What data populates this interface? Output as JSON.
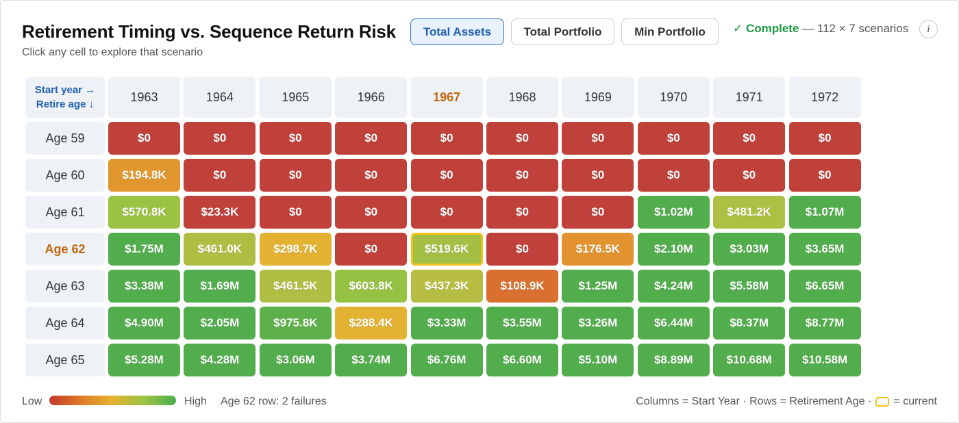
{
  "header": {
    "title": "Retirement Timing vs. Sequence Return Risk",
    "subtitle": "Click any cell to explore that scenario"
  },
  "tabs": [
    {
      "label": "Total Assets",
      "active": true
    },
    {
      "label": "Total Portfolio",
      "active": false
    },
    {
      "label": "Min Portfolio",
      "active": false
    }
  ],
  "status": {
    "state": "✓ Complete",
    "detail": "— 112 × 7 scenarios",
    "info_label": "i"
  },
  "grid": {
    "corner_line1": "Start year →",
    "corner_line2": "Retire age ↓",
    "columns": [
      "1963",
      "1964",
      "1965",
      "1966",
      "1967",
      "1968",
      "1969",
      "1970",
      "1971",
      "1972"
    ],
    "current_column": "1967",
    "current_row": "Age 62",
    "rows": [
      {
        "label": "Age 59",
        "cells": [
          {
            "v": "$0",
            "c": "#c0403a"
          },
          {
            "v": "$0",
            "c": "#c0403a"
          },
          {
            "v": "$0",
            "c": "#c0403a"
          },
          {
            "v": "$0",
            "c": "#c0403a"
          },
          {
            "v": "$0",
            "c": "#c0403a"
          },
          {
            "v": "$0",
            "c": "#c0403a"
          },
          {
            "v": "$0",
            "c": "#c0403a"
          },
          {
            "v": "$0",
            "c": "#c0403a"
          },
          {
            "v": "$0",
            "c": "#c0403a"
          },
          {
            "v": "$0",
            "c": "#c0403a"
          }
        ]
      },
      {
        "label": "Age 60",
        "cells": [
          {
            "v": "$194.8K",
            "c": "#e2972e"
          },
          {
            "v": "$0",
            "c": "#c0403a"
          },
          {
            "v": "$0",
            "c": "#c0403a"
          },
          {
            "v": "$0",
            "c": "#c0403a"
          },
          {
            "v": "$0",
            "c": "#c0403a"
          },
          {
            "v": "$0",
            "c": "#c0403a"
          },
          {
            "v": "$0",
            "c": "#c0403a"
          },
          {
            "v": "$0",
            "c": "#c0403a"
          },
          {
            "v": "$0",
            "c": "#c0403a"
          },
          {
            "v": "$0",
            "c": "#c0403a"
          }
        ]
      },
      {
        "label": "Age 61",
        "cells": [
          {
            "v": "$570.8K",
            "c": "#9bc243"
          },
          {
            "v": "$23.3K",
            "c": "#c0403a"
          },
          {
            "v": "$0",
            "c": "#c0403a"
          },
          {
            "v": "$0",
            "c": "#c0403a"
          },
          {
            "v": "$0",
            "c": "#c0403a"
          },
          {
            "v": "$0",
            "c": "#c0403a"
          },
          {
            "v": "$0",
            "c": "#c0403a"
          },
          {
            "v": "$1.02M",
            "c": "#52ad4d"
          },
          {
            "v": "$481.2K",
            "c": "#adc043"
          },
          {
            "v": "$1.07M",
            "c": "#52ad4d"
          }
        ]
      },
      {
        "label": "Age 62",
        "cells": [
          {
            "v": "$1.75M",
            "c": "#52ad4d"
          },
          {
            "v": "$461.0K",
            "c": "#afbe43"
          },
          {
            "v": "$298.7K",
            "c": "#e3b232"
          },
          {
            "v": "$0",
            "c": "#c0403a"
          },
          {
            "v": "$519.6K",
            "c": "#a3c045",
            "current": true
          },
          {
            "v": "$0",
            "c": "#c0403a"
          },
          {
            "v": "$176.5K",
            "c": "#e29330"
          },
          {
            "v": "$2.10M",
            "c": "#52ad4d"
          },
          {
            "v": "$3.03M",
            "c": "#52ad4d"
          },
          {
            "v": "$3.65M",
            "c": "#52ad4d"
          }
        ]
      },
      {
        "label": "Age 63",
        "cells": [
          {
            "v": "$3.38M",
            "c": "#52ad4d"
          },
          {
            "v": "$1.69M",
            "c": "#52ad4d"
          },
          {
            "v": "$461.5K",
            "c": "#afbe43"
          },
          {
            "v": "$603.8K",
            "c": "#96c244"
          },
          {
            "v": "$437.3K",
            "c": "#b7bd42"
          },
          {
            "v": "$108.9K",
            "c": "#d9702f"
          },
          {
            "v": "$1.25M",
            "c": "#52ad4d"
          },
          {
            "v": "$4.24M",
            "c": "#52ad4d"
          },
          {
            "v": "$5.58M",
            "c": "#52ad4d"
          },
          {
            "v": "$6.65M",
            "c": "#52ad4d"
          }
        ]
      },
      {
        "label": "Age 64",
        "cells": [
          {
            "v": "$4.90M",
            "c": "#52ad4d"
          },
          {
            "v": "$2.05M",
            "c": "#52ad4d"
          },
          {
            "v": "$975.8K",
            "c": "#5eb04a"
          },
          {
            "v": "$288.4K",
            "c": "#e3b232"
          },
          {
            "v": "$3.33M",
            "c": "#52ad4d"
          },
          {
            "v": "$3.55M",
            "c": "#52ad4d"
          },
          {
            "v": "$3.26M",
            "c": "#52ad4d"
          },
          {
            "v": "$6.44M",
            "c": "#52ad4d"
          },
          {
            "v": "$8.37M",
            "c": "#52ad4d"
          },
          {
            "v": "$8.77M",
            "c": "#52ad4d"
          }
        ]
      },
      {
        "label": "Age 65",
        "cells": [
          {
            "v": "$5.28M",
            "c": "#52ad4d"
          },
          {
            "v": "$4.28M",
            "c": "#52ad4d"
          },
          {
            "v": "$3.06M",
            "c": "#52ad4d"
          },
          {
            "v": "$3.74M",
            "c": "#52ad4d"
          },
          {
            "v": "$6.76M",
            "c": "#52ad4d"
          },
          {
            "v": "$6.60M",
            "c": "#52ad4d"
          },
          {
            "v": "$5.10M",
            "c": "#52ad4d"
          },
          {
            "v": "$8.89M",
            "c": "#52ad4d"
          },
          {
            "v": "$10.68M",
            "c": "#52ad4d"
          },
          {
            "v": "$10.58M",
            "c": "#52ad4d"
          }
        ]
      }
    ]
  },
  "legend": {
    "low": "Low",
    "high": "High",
    "failures_note": "Age 62 row: 2 failures",
    "axes_note": "Columns = Start Year · Rows = Retirement Age ·",
    "current_note": "= current"
  },
  "colors": {
    "accent": "#1f5fae",
    "current_highlight": "#f2c21a",
    "complete_green": "#1e9a43",
    "fail_red": "#c0403a",
    "success_green": "#52ad4d"
  }
}
